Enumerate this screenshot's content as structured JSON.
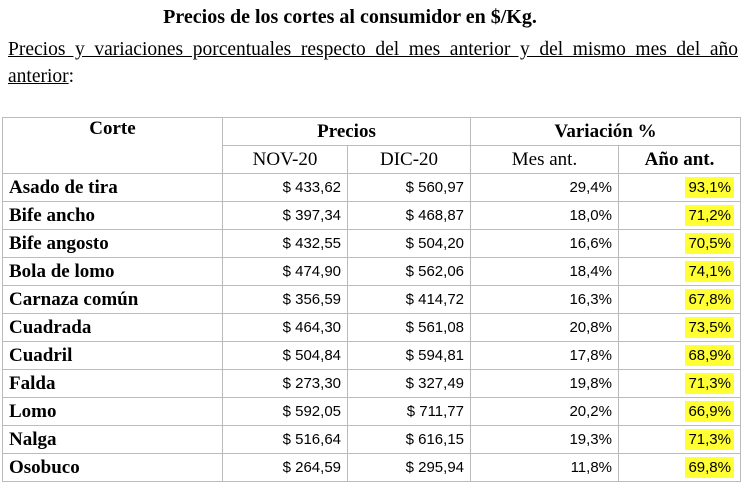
{
  "header": {
    "title": "Precios de los cortes al consumidor en $/Kg.",
    "subtitle": "Precios y variaciones porcentuales respecto del mes anterior y del mismo mes del año anterior",
    "subtitle_end": ":"
  },
  "table": {
    "group_headers": [
      "Corte",
      "Precios",
      "Variación %"
    ],
    "sub_headers": [
      "NOV-20",
      "DIC-20",
      "Mes ant.",
      "Año ant."
    ],
    "rows": [
      [
        "Asado de tira",
        "$ 433,62",
        "$ 560,97",
        "29,4%",
        "93,1%"
      ],
      [
        "Bife ancho",
        "$ 397,34",
        "$ 468,87",
        "18,0%",
        "71,2%"
      ],
      [
        "Bife angosto",
        "$ 432,55",
        "$ 504,20",
        "16,6%",
        "70,5%"
      ],
      [
        "Bola de lomo",
        "$ 474,90",
        "$ 562,06",
        "18,4%",
        "74,1%"
      ],
      [
        "Carnaza común",
        "$ 356,59",
        "$ 414,72",
        "16,3%",
        "67,8%"
      ],
      [
        "Cuadrada",
        "$ 464,30",
        "$ 561,08",
        "20,8%",
        "73,5%"
      ],
      [
        "Cuadril",
        "$ 504,84",
        "$ 594,81",
        "17,8%",
        "68,9%"
      ],
      [
        "Falda",
        "$ 273,30",
        "$ 327,49",
        "19,8%",
        "71,3%"
      ],
      [
        "Lomo",
        "$ 592,05",
        "$ 711,77",
        "20,2%",
        "66,9%"
      ],
      [
        "Nalga",
        "$ 516,64",
        "$ 616,15",
        "19,3%",
        "71,3%"
      ],
      [
        "Osobuco",
        "$ 264,59",
        "$ 295,94",
        "11,8%",
        "69,8%"
      ]
    ]
  }
}
